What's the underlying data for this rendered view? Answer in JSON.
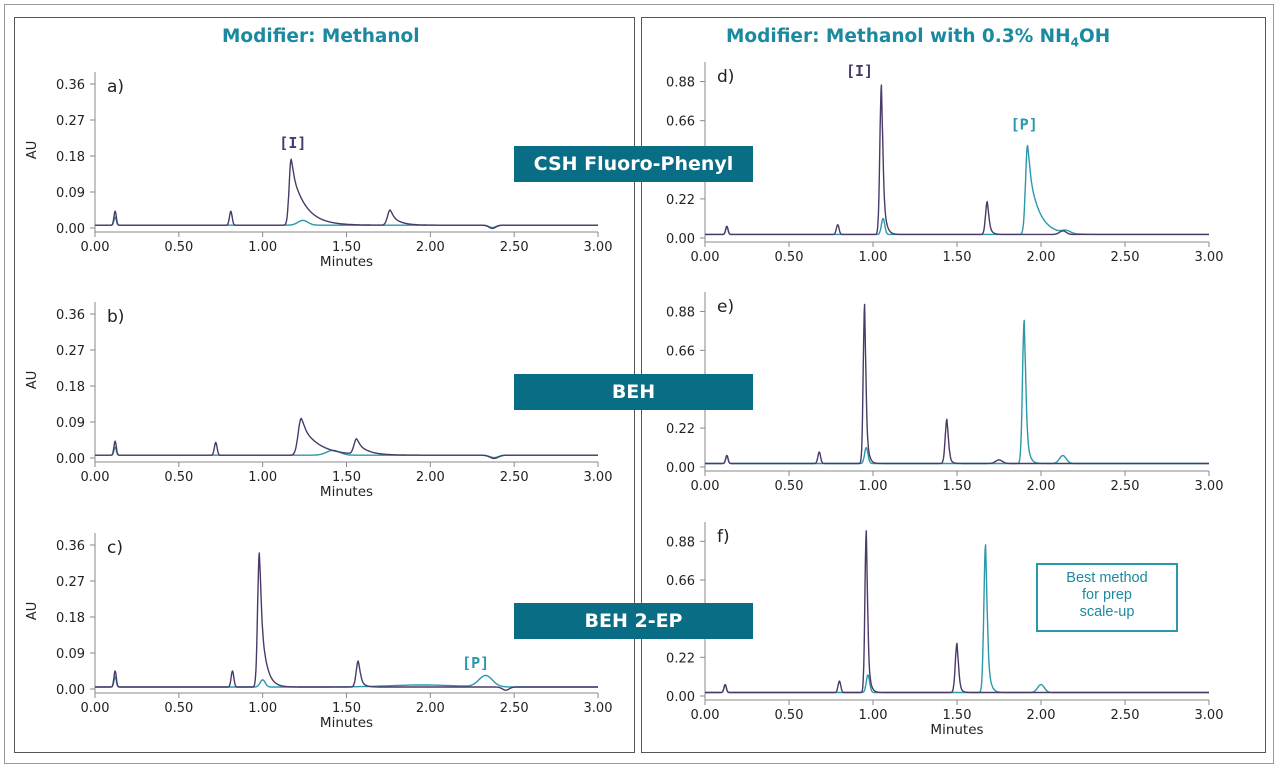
{
  "headings": {
    "left": "Modifier: Methanol",
    "right_main": "Modifier: Methanol with 0.3% NH",
    "right_sub": "4",
    "right_tail": "OH"
  },
  "banners": [
    "CSH Fluoro-Phenyl",
    "BEH",
    "BEH 2-EP"
  ],
  "callout": {
    "lines": [
      "Best method",
      "for prep",
      "scale-up"
    ]
  },
  "colors": {
    "purple": "#4a3a68",
    "teal": "#2a98ab",
    "heading": "#1b8aa0",
    "banner": "#086d85"
  },
  "chart_data": [
    {
      "type": "line",
      "panel_label": "a)",
      "ylabel": "AU",
      "xlabel": "Minutes",
      "xlim": [
        0,
        3
      ],
      "ylim": [
        0,
        0.39
      ],
      "xticks": [
        "0.00",
        "0.50",
        "1.00",
        "1.50",
        "2.00",
        "2.50",
        "3.00"
      ],
      "yticks": [
        "0.00",
        "0.09",
        "0.18",
        "0.27",
        "0.36"
      ],
      "series": [
        {
          "color": "purple",
          "baseline": 0.007,
          "peaks": [
            [
              0.12,
              0.035,
              0.007
            ],
            [
              0.81,
              0.035,
              0.008
            ],
            [
              1.17,
              0.165,
              0.012,
              0.08
            ],
            [
              1.76,
              0.038,
              0.015,
              0.05
            ],
            [
              2.37,
              -0.008,
              0.02
            ]
          ]
        },
        {
          "color": "teal",
          "baseline": 0.007,
          "peaks": [
            [
              0.12,
              0.02,
              0.007
            ],
            [
              1.24,
              0.012,
              0.03
            ],
            [
              2.37,
              -0.006,
              0.02
            ]
          ]
        }
      ],
      "annotations": [
        {
          "text": "[I]",
          "x": 1.18,
          "y": 0.2,
          "color": "purple"
        }
      ]
    },
    {
      "type": "line",
      "panel_label": "b)",
      "ylabel": "AU",
      "xlabel": "Minutes",
      "xlim": [
        0,
        3
      ],
      "ylim": [
        0,
        0.39
      ],
      "xticks": [
        "0.00",
        "0.50",
        "1.00",
        "1.50",
        "2.00",
        "2.50",
        "3.00"
      ],
      "yticks": [
        "0.00",
        "0.09",
        "0.18",
        "0.27",
        "0.36"
      ],
      "series": [
        {
          "color": "purple",
          "baseline": 0.007,
          "peaks": [
            [
              0.12,
              0.035,
              0.007
            ],
            [
              0.72,
              0.032,
              0.008
            ],
            [
              1.23,
              0.092,
              0.018,
              0.1
            ],
            [
              1.56,
              0.038,
              0.015,
              0.06
            ],
            [
              2.38,
              -0.008,
              0.025
            ]
          ]
        },
        {
          "color": "teal",
          "baseline": 0.007,
          "peaks": [
            [
              0.12,
              0.02,
              0.007
            ],
            [
              1.42,
              0.012,
              0.04
            ],
            [
              2.38,
              -0.006,
              0.025
            ]
          ]
        }
      ],
      "annotations": []
    },
    {
      "type": "line",
      "panel_label": "c)",
      "ylabel": "AU",
      "xlabel": "Minutes",
      "xlim": [
        0,
        3
      ],
      "ylim": [
        0,
        0.39
      ],
      "xticks": [
        "0.00",
        "0.50",
        "1.00",
        "1.50",
        "2.00",
        "2.50",
        "3.00"
      ],
      "yticks": [
        "0.00",
        "0.09",
        "0.18",
        "0.27",
        "0.36"
      ],
      "series": [
        {
          "color": "purple",
          "baseline": 0.005,
          "peaks": [
            [
              0.12,
              0.04,
              0.007
            ],
            [
              0.82,
              0.04,
              0.008
            ],
            [
              0.98,
              0.335,
              0.01,
              0.03
            ],
            [
              1.57,
              0.065,
              0.012,
              0.02
            ],
            [
              2.45,
              -0.008,
              0.02
            ]
          ]
        },
        {
          "color": "teal",
          "baseline": 0.005,
          "peaks": [
            [
              0.12,
              0.025,
              0.007
            ],
            [
              1.0,
              0.018,
              0.015
            ],
            [
              2.33,
              0.028,
              0.04
            ],
            [
              1.95,
              0.005,
              0.2
            ]
          ]
        }
      ],
      "annotations": [
        {
          "text": "[P]",
          "x": 2.27,
          "y": 0.052,
          "color": "teal"
        }
      ]
    },
    {
      "type": "line",
      "panel_label": "d)",
      "ylabel": "",
      "xlabel": "",
      "xlim": [
        0,
        3
      ],
      "ylim": [
        0,
        0.99
      ],
      "xticks": [
        "0.00",
        "0.50",
        "1.00",
        "1.50",
        "2.00",
        "2.50",
        "3.00"
      ],
      "yticks": [
        "0.00",
        "0.22",
        "0.44",
        "0.66",
        "0.88"
      ],
      "series": [
        {
          "color": "purple",
          "baseline": 0.02,
          "peaks": [
            [
              0.13,
              0.045,
              0.007
            ],
            [
              0.79,
              0.055,
              0.008
            ],
            [
              1.05,
              0.84,
              0.009,
              0.015
            ],
            [
              1.68,
              0.185,
              0.01,
              0.015
            ],
            [
              2.13,
              0.02,
              0.02
            ]
          ]
        },
        {
          "color": "teal",
          "baseline": 0.02,
          "peaks": [
            [
              0.13,
              0.045,
              0.007
            ],
            [
              1.06,
              0.09,
              0.01
            ],
            [
              1.92,
              0.5,
              0.012,
              0.06
            ],
            [
              2.15,
              0.015,
              0.025
            ]
          ]
        }
      ],
      "annotations": [
        {
          "text": "[I]",
          "x": 0.92,
          "y": 0.91,
          "color": "purple"
        },
        {
          "text": "[P]",
          "x": 1.9,
          "y": 0.61,
          "color": "teal"
        }
      ]
    },
    {
      "type": "line",
      "panel_label": "e)",
      "ylabel": "",
      "xlabel": "",
      "xlim": [
        0,
        3
      ],
      "ylim": [
        0,
        0.99
      ],
      "xticks": [
        "0.00",
        "0.50",
        "1.00",
        "1.50",
        "2.00",
        "2.50",
        "3.00"
      ],
      "yticks": [
        "0.00",
        "0.22",
        "0.44",
        "0.66",
        "0.88"
      ],
      "series": [
        {
          "color": "purple",
          "baseline": 0.02,
          "peaks": [
            [
              0.13,
              0.045,
              0.007
            ],
            [
              0.68,
              0.065,
              0.008
            ],
            [
              0.95,
              0.9,
              0.008,
              0.012
            ],
            [
              1.44,
              0.25,
              0.01,
              0.012
            ],
            [
              1.75,
              0.02,
              0.02
            ]
          ]
        },
        {
          "color": "teal",
          "baseline": 0.02,
          "peaks": [
            [
              0.13,
              0.045,
              0.007
            ],
            [
              0.96,
              0.09,
              0.01
            ],
            [
              1.9,
              0.81,
              0.01,
              0.015
            ],
            [
              2.13,
              0.045,
              0.02
            ]
          ]
        }
      ],
      "annotations": []
    },
    {
      "type": "line",
      "panel_label": "f)",
      "ylabel": "",
      "xlabel": "Minutes",
      "xlim": [
        0,
        3
      ],
      "ylim": [
        0,
        0.99
      ],
      "xticks": [
        "0.00",
        "0.50",
        "1.00",
        "1.50",
        "2.00",
        "2.50",
        "3.00"
      ],
      "yticks": [
        "0.00",
        "0.22",
        "0.44",
        "0.66",
        "0.88"
      ],
      "series": [
        {
          "color": "purple",
          "baseline": 0.02,
          "peaks": [
            [
              0.12,
              0.045,
              0.007
            ],
            [
              0.8,
              0.065,
              0.008
            ],
            [
              0.96,
              0.92,
              0.008,
              0.012
            ],
            [
              1.5,
              0.28,
              0.01,
              0.012
            ]
          ]
        },
        {
          "color": "teal",
          "baseline": 0.02,
          "peaks": [
            [
              0.12,
              0.045,
              0.007
            ],
            [
              0.97,
              0.1,
              0.01
            ],
            [
              1.67,
              0.84,
              0.01,
              0.015
            ],
            [
              2.0,
              0.045,
              0.02
            ]
          ]
        }
      ],
      "annotations": []
    }
  ]
}
